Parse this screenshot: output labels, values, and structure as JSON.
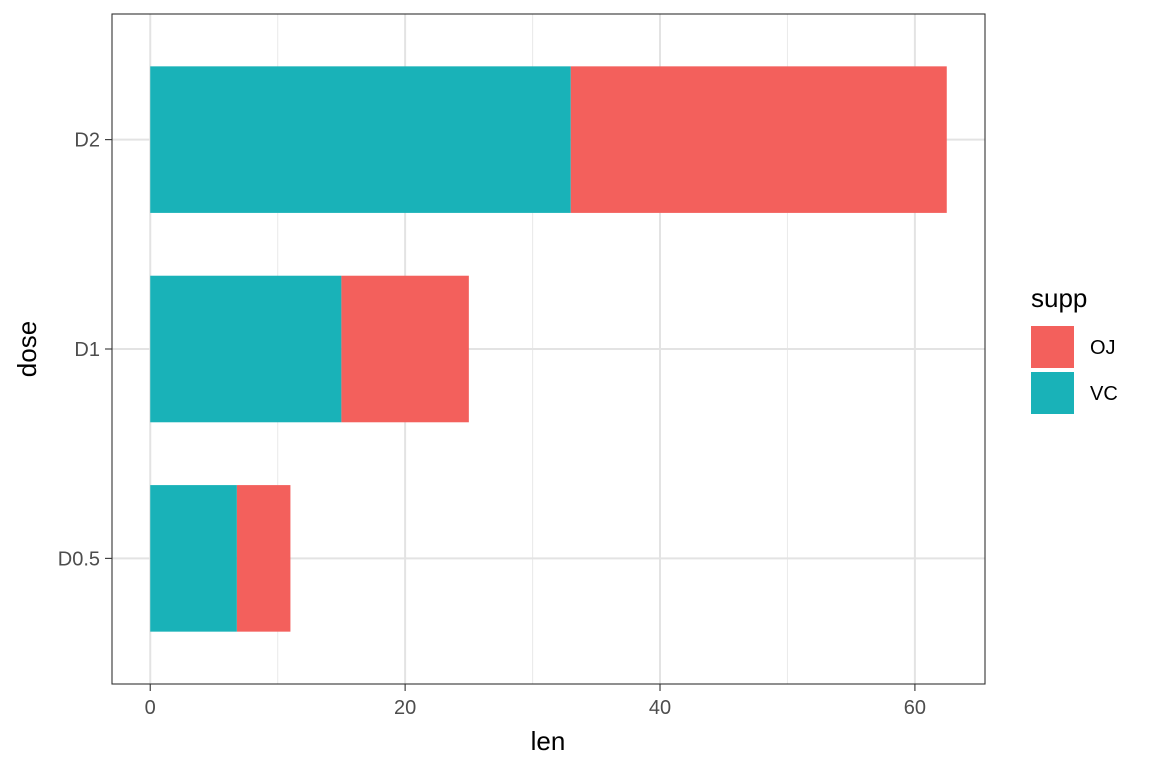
{
  "chart_data": {
    "type": "bar",
    "orientation": "horizontal",
    "stacked": true,
    "categories": [
      "D0.5",
      "D1",
      "D2"
    ],
    "series": [
      {
        "name": "VC",
        "values": [
          6.8,
          15.0,
          33.0
        ],
        "color": "#19B2B8"
      },
      {
        "name": "OJ",
        "values": [
          4.2,
          10.0,
          29.5
        ],
        "color": "#F3605C"
      }
    ],
    "xlabel": "len",
    "ylabel": "dose",
    "xlim": [
      -3,
      65.5
    ],
    "xticks": [
      0,
      20,
      40,
      60
    ],
    "grid": true,
    "legend": {
      "title": "supp",
      "placement": "right",
      "entries": [
        "OJ",
        "VC"
      ]
    }
  }
}
